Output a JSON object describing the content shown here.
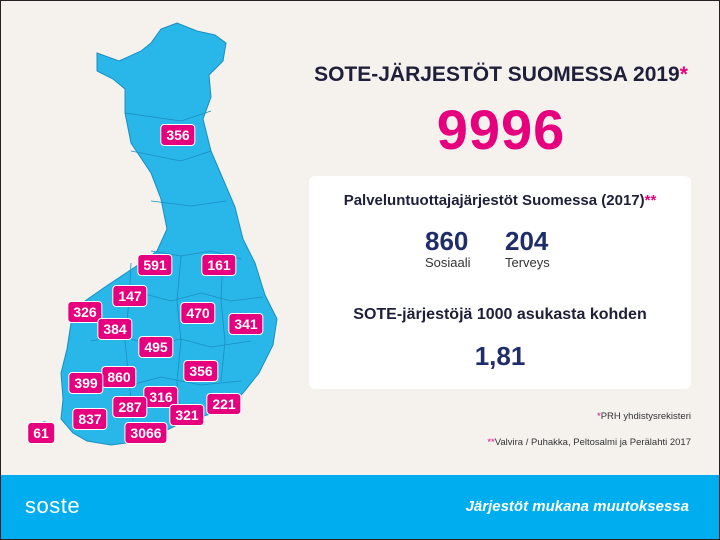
{
  "header": {
    "title": "SOTE-JÄRJESTÖT SUOMESSA 2019",
    "title_star": "*",
    "total": "9996"
  },
  "card": {
    "title": "Palveluntuottajajärjestöt Suomessa (2017)",
    "title_star": "**",
    "stat1": {
      "value": "860",
      "label": "Sosiaali"
    },
    "stat2": {
      "value": "204",
      "label": "Terveys"
    },
    "subtitle": "SOTE-järjestöjä 1000 asukasta kohden",
    "ratio": "1,81"
  },
  "notes": {
    "note1_star": "*",
    "note1": "PRH yhdistysrekisteri",
    "note2_star": "**",
    "note2": "Valvira / Puhakka, Peltosalmi ja Perälahti 2017"
  },
  "map_badges": [
    "356",
    "591",
    "161",
    "147",
    "326",
    "470",
    "384",
    "341",
    "495",
    "860",
    "356",
    "399",
    "316",
    "287",
    "221",
    "837",
    "321",
    "61",
    "3066"
  ],
  "footer": {
    "logo": "soste",
    "slogan": "Järjestöt mukana muutoksessa"
  },
  "colors": {
    "accent": "#e6007e",
    "map": "#29b6e8",
    "navy": "#1f2d6b",
    "footer": "#00aeef"
  }
}
